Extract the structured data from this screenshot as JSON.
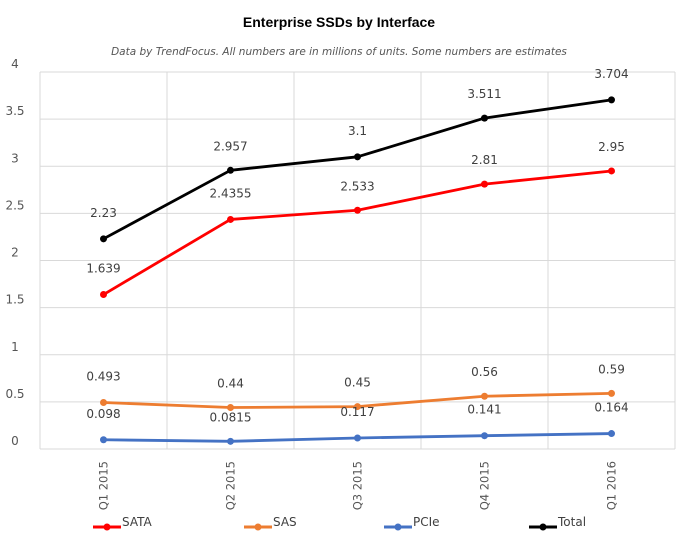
{
  "chart_data": {
    "type": "line",
    "title": "Enterprise SSDs by Interface",
    "subtitle": "Data by TrendFocus. All numbers are in millions of units. Some numbers are estimates",
    "xlabel": "",
    "ylabel": "",
    "categories": [
      "Q1 2015",
      "Q2 2015",
      "Q3 2015",
      "Q4 2015",
      "Q1 2016"
    ],
    "ylim": [
      0,
      4
    ],
    "yticks": [
      0,
      0.5,
      1,
      1.5,
      2,
      2.5,
      3,
      3.5,
      4
    ],
    "ytick_labels": [
      "0",
      "0.5",
      "1",
      "1.5",
      "2",
      "2.5",
      "3",
      "3.5",
      "4"
    ],
    "grid": true,
    "legend_position": "bottom",
    "series": [
      {
        "name": "SATA",
        "color": "#ff0000",
        "values": [
          1.639,
          2.4355,
          2.533,
          2.81,
          2.95
        ],
        "labels": [
          "1.639",
          "2.4355",
          "2.533",
          "2.81",
          "2.95"
        ]
      },
      {
        "name": "SAS",
        "color": "#ed7d31",
        "values": [
          0.493,
          0.44,
          0.45,
          0.56,
          0.59
        ],
        "labels": [
          "0.493",
          "0.44",
          "0.45",
          "0.56",
          "0.59"
        ]
      },
      {
        "name": "PCIe",
        "color": "#4472c4",
        "values": [
          0.098,
          0.0815,
          0.117,
          0.141,
          0.164
        ],
        "labels": [
          "0.098",
          "0.0815",
          "0.117",
          "0.141",
          "0.164"
        ]
      },
      {
        "name": "Total",
        "color": "#000000",
        "values": [
          2.23,
          2.957,
          3.1,
          3.511,
          3.704
        ],
        "labels": [
          "2.23",
          "2.957",
          "3.1",
          "3.511",
          "3.704"
        ]
      }
    ]
  }
}
